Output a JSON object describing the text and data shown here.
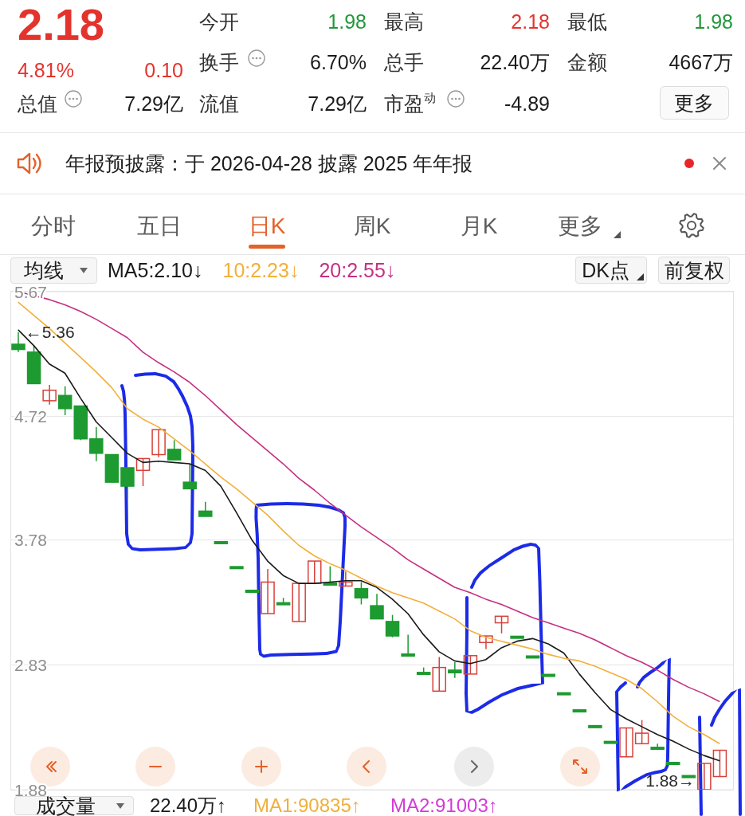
{
  "chart_data": [
    {
      "type": "other",
      "annotations": [
        "2.18",
        "4.81%",
        "0.10",
        "总值",
        "7.29亿",
        "今开",
        "1.98",
        "换手",
        "6.70%",
        "流值",
        "7.29亿",
        "最高",
        "2.18",
        "总手",
        "22.40万",
        "市盈$^{动}$",
        "-4.89",
        "最低",
        "1.98",
        "金额",
        "4667万",
        "更多",
        "年报预披露：于 2026-04-28 披露 2025 年年报",
        "分时",
        "五日",
        "日K",
        "周K",
        "月K",
        "更多"
      ]
    },
    {
      "type": "candlestick",
      "categories": [
        null,
        null,
        null,
        null,
        null,
        null,
        null,
        null,
        null,
        null,
        null,
        null,
        null,
        null,
        null,
        null,
        null,
        null,
        null,
        null,
        null,
        null,
        null,
        null,
        null,
        null,
        null,
        null,
        null,
        null,
        null,
        null,
        null,
        null,
        null,
        null,
        null,
        null,
        null,
        null,
        null,
        null,
        null,
        null,
        null,
        null
      ],
      "ohlc": [
        [
          5.27,
          5.36,
          5.21,
          5.23
        ],
        [
          5.21,
          5.26,
          4.97,
          4.97
        ],
        [
          4.84,
          4.96,
          4.81,
          4.92
        ],
        [
          4.88,
          4.95,
          4.73,
          4.78
        ],
        [
          4.8,
          4.8,
          4.54,
          4.55
        ],
        [
          4.55,
          4.64,
          4.38,
          4.44
        ],
        [
          4.43,
          4.43,
          4.22,
          4.22
        ],
        [
          4.33,
          4.33,
          4.1,
          4.19
        ],
        [
          4.31,
          4.4,
          4.19,
          4.4
        ],
        [
          4.43,
          4.62,
          4.41,
          4.62
        ],
        [
          4.47,
          4.54,
          4.39,
          4.39
        ],
        [
          4.22,
          4.36,
          4.17,
          4.17
        ],
        [
          4.0,
          4.07,
          3.96,
          3.96
        ],
        [
          3.76,
          3.76,
          3.76,
          3.76
        ],
        [
          3.57,
          3.57,
          3.57,
          3.57
        ],
        [
          3.39,
          3.39,
          3.39,
          3.39
        ],
        [
          3.22,
          3.56,
          3.22,
          3.46
        ],
        [
          3.3,
          3.34,
          3.29,
          3.29
        ],
        [
          3.16,
          3.45,
          3.16,
          3.45
        ],
        [
          3.45,
          3.62,
          3.45,
          3.62
        ],
        [
          3.45,
          3.58,
          3.44,
          3.44
        ],
        [
          3.43,
          3.54,
          3.43,
          3.46
        ],
        [
          3.41,
          3.46,
          3.29,
          3.34
        ],
        [
          3.28,
          3.37,
          3.18,
          3.18
        ],
        [
          3.16,
          3.21,
          3.04,
          3.05
        ],
        [
          2.91,
          3.06,
          2.9,
          2.9
        ],
        [
          2.77,
          2.81,
          2.76,
          2.76
        ],
        [
          2.63,
          2.89,
          2.63,
          2.81
        ],
        [
          2.79,
          2.85,
          2.73,
          2.77
        ],
        [
          2.76,
          2.9,
          2.76,
          2.9
        ],
        [
          3.0,
          3.05,
          2.95,
          3.05
        ],
        [
          3.15,
          3.2,
          3.07,
          3.2
        ],
        [
          3.04,
          3.04,
          3.04,
          3.04
        ],
        [
          2.89,
          2.89,
          2.89,
          2.89
        ],
        [
          2.75,
          2.75,
          2.75,
          2.75
        ],
        [
          2.61,
          2.61,
          2.61,
          2.61
        ],
        [
          2.48,
          2.48,
          2.48,
          2.48
        ],
        [
          2.36,
          2.36,
          2.36,
          2.36
        ],
        [
          2.24,
          2.24,
          2.24,
          2.24
        ],
        [
          2.13,
          2.35,
          2.13,
          2.35
        ],
        [
          2.23,
          2.41,
          2.23,
          2.31
        ],
        [
          2.2,
          2.23,
          2.19,
          2.19
        ],
        [
          2.08,
          2.08,
          2.08,
          2.08
        ],
        [
          1.98,
          1.98,
          1.98,
          1.98
        ],
        [
          1.88,
          2.08,
          1.88,
          2.08
        ],
        [
          1.98,
          2.18,
          1.98,
          2.18
        ]
      ],
      "series": [
        {
          "type": "line",
          "name": "MA5:2.10↓",
          "color": "#1a1a1a",
          "values": [
            5.38,
            5.26,
            5.12,
            5.05,
            4.86,
            4.68,
            4.56,
            4.44,
            4.37,
            4.38,
            4.37,
            4.36,
            4.31,
            4.19,
            3.99,
            3.78,
            3.62,
            3.51,
            3.45,
            3.45,
            3.46,
            3.47,
            3.47,
            3.42,
            3.33,
            3.22,
            3.06,
            2.93,
            2.86,
            2.84,
            2.87,
            2.96,
            3.01,
            3.03,
            2.99,
            2.92,
            2.76,
            2.62,
            2.49,
            2.42,
            2.36,
            2.3,
            2.25,
            2.19,
            2.14,
            2.1
          ]
        },
        {
          "type": "line",
          "name": "10:2.23↓",
          "color": "#f2b03c",
          "values": [
            5.59,
            5.49,
            5.39,
            5.28,
            5.17,
            5.06,
            4.94,
            4.78,
            4.7,
            4.64,
            4.55,
            4.46,
            4.36,
            4.26,
            4.17,
            4.07,
            3.97,
            3.85,
            3.74,
            3.66,
            3.6,
            3.55,
            3.49,
            3.43,
            3.38,
            3.34,
            3.3,
            3.24,
            3.18,
            3.09,
            3.04,
            3.01,
            2.98,
            2.95,
            2.91,
            2.88,
            2.86,
            2.82,
            2.77,
            2.72,
            2.65,
            2.55,
            2.44,
            2.36,
            2.3,
            2.23
          ]
        },
        {
          "type": "line",
          "name": "20:2.55↓",
          "color": "#c52f83",
          "values": [
            5.67,
            5.64,
            5.61,
            5.57,
            5.52,
            5.46,
            5.39,
            5.32,
            5.21,
            5.13,
            5.06,
            4.98,
            4.88,
            4.77,
            4.66,
            4.56,
            4.46,
            4.36,
            4.25,
            4.16,
            4.06,
            3.97,
            3.88,
            3.8,
            3.72,
            3.63,
            3.56,
            3.49,
            3.42,
            3.38,
            3.33,
            3.29,
            3.24,
            3.19,
            3.15,
            3.11,
            3.07,
            3.02,
            2.96,
            2.9,
            2.85,
            2.79,
            2.72,
            2.66,
            2.61,
            2.55
          ]
        }
      ],
      "ylim": [
        1.88,
        5.67
      ],
      "yticks": [
        1.88,
        2.83,
        3.78,
        4.72,
        5.67
      ],
      "grid": "y",
      "legend": "top left",
      "tick_labels": "y",
      "annotations": [
        {
          "text": "←5.36",
          "y": 5.36
        },
        "1.88→",
        "均线",
        "DK点",
        "前复权",
        "成交量",
        "22.40万↑",
        "MA1:90835↑",
        "MA2:91003↑"
      ]
    }
  ]
}
